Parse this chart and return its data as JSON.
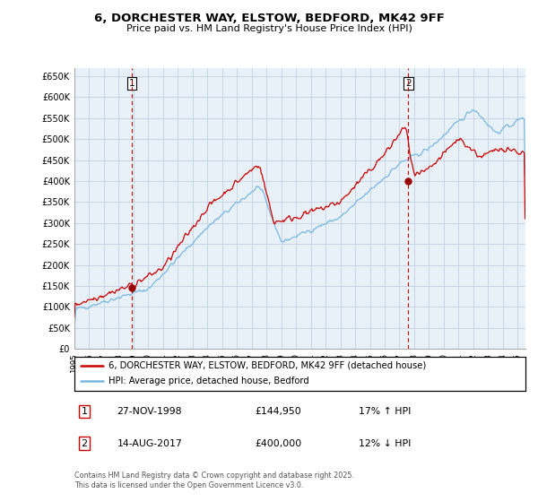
{
  "title": "6, DORCHESTER WAY, ELSTOW, BEDFORD, MK42 9FF",
  "subtitle": "Price paid vs. HM Land Registry's House Price Index (HPI)",
  "ylabel_ticks": [
    "£0",
    "£50K",
    "£100K",
    "£150K",
    "£200K",
    "£250K",
    "£300K",
    "£350K",
    "£400K",
    "£450K",
    "£500K",
    "£550K",
    "£600K",
    "£650K"
  ],
  "ytick_values": [
    0,
    50000,
    100000,
    150000,
    200000,
    250000,
    300000,
    350000,
    400000,
    450000,
    500000,
    550000,
    600000,
    650000
  ],
  "xmin": 1995.0,
  "xmax": 2025.5,
  "ymin": 0,
  "ymax": 670000,
  "sale1_date": 1998.9,
  "sale1_price": 144950,
  "sale2_date": 2017.6,
  "sale2_price": 400000,
  "hpi_color": "#7ab8e0",
  "sale_color": "#cc0000",
  "vline_color": "#cc0000",
  "marker_color": "#990000",
  "chart_bg": "#e8f0f8",
  "legend_label_sale": "6, DORCHESTER WAY, ELSTOW, BEDFORD, MK42 9FF (detached house)",
  "legend_label_hpi": "HPI: Average price, detached house, Bedford",
  "annot1_label": "1",
  "annot2_label": "2",
  "annot1_date": "27-NOV-1998",
  "annot1_price": "£144,950",
  "annot1_hpi": "17% ↑ HPI",
  "annot2_date": "14-AUG-2017",
  "annot2_price": "£400,000",
  "annot2_hpi": "12% ↓ HPI",
  "footer": "Contains HM Land Registry data © Crown copyright and database right 2025.\nThis data is licensed under the Open Government Licence v3.0.",
  "background_color": "#ffffff",
  "grid_color": "#bbccdd"
}
